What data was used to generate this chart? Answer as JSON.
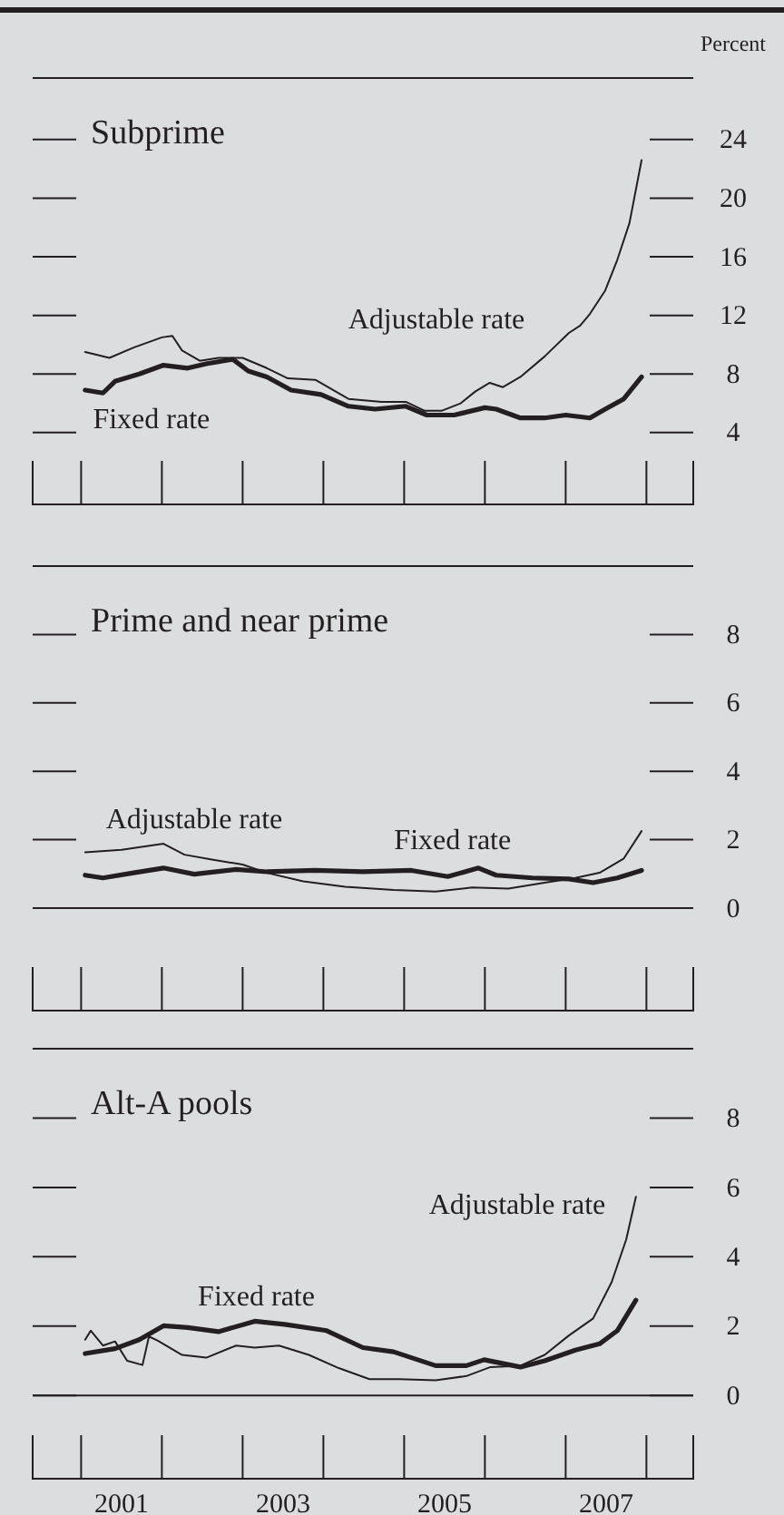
{
  "chart_data": [
    {
      "type": "line",
      "title": "Subprime",
      "ylabel": "Percent",
      "xlim": [
        2000.4,
        2008.58
      ],
      "ylim": [
        -0.9,
        28.2
      ],
      "yticks": [
        4,
        8,
        12,
        16,
        20,
        24
      ],
      "tick_labels": "y",
      "series": [
        {
          "name": "Adjustable rate",
          "color": "#231f20",
          "x": [
            2001.05,
            2001.35,
            2001.65,
            2002.0,
            2002.13,
            2002.25,
            2002.47,
            2002.7,
            2003.0,
            2003.3,
            2003.56,
            2003.9,
            2004.31,
            2004.72,
            2005.02,
            2005.25,
            2005.47,
            2005.7,
            2005.88,
            2006.06,
            2006.22,
            2006.44,
            2006.74,
            2007.04,
            2007.18,
            2007.3,
            2007.49,
            2007.64,
            2007.79,
            2007.94
          ],
          "values": [
            9.5,
            9.1,
            9.8,
            10.5,
            10.6,
            9.6,
            8.9,
            9.1,
            9.1,
            8.4,
            7.7,
            7.6,
            6.3,
            6.1,
            6.1,
            5.5,
            5.5,
            6.0,
            6.8,
            7.4,
            7.1,
            7.8,
            9.2,
            10.8,
            11.3,
            12.1,
            13.7,
            15.8,
            18.3,
            22.6
          ]
        },
        {
          "name": "Fixed rate",
          "color": "#231f20",
          "x": [
            2001.05,
            2001.27,
            2001.42,
            2001.72,
            2002.02,
            2002.32,
            2002.55,
            2002.88,
            2003.07,
            2003.3,
            2003.6,
            2003.97,
            2004.31,
            2004.64,
            2005.02,
            2005.28,
            2005.62,
            2006.0,
            2006.14,
            2006.44,
            2006.74,
            2007.0,
            2007.3,
            2007.49,
            2007.72,
            2007.94
          ],
          "values": [
            6.9,
            6.7,
            7.5,
            8.0,
            8.6,
            8.4,
            8.7,
            9.0,
            8.2,
            7.8,
            6.9,
            6.6,
            5.8,
            5.6,
            5.8,
            5.2,
            5.2,
            5.7,
            5.6,
            5.0,
            5.0,
            5.2,
            5.0,
            5.6,
            6.3,
            7.8
          ]
        }
      ]
    },
    {
      "type": "line",
      "title": "Prime and near prime",
      "xlim": [
        2000.4,
        2008.58
      ],
      "ylim": [
        -3,
        10
      ],
      "yticks": [
        0,
        2,
        4,
        6,
        8
      ],
      "tick_labels": "y",
      "ref_lines": [
        {
          "axis": "y",
          "value": 0,
          "color": "#231f20"
        }
      ],
      "series": [
        {
          "name": "Adjustable rate",
          "color": "#231f20",
          "x": [
            2001.05,
            2001.5,
            2002.02,
            2002.28,
            2002.62,
            2003.0,
            2003.3,
            2003.75,
            2004.27,
            2004.87,
            2005.39,
            2005.84,
            2006.29,
            2006.74,
            2007.12,
            2007.42,
            2007.72,
            2007.94
          ],
          "values": [
            1.63,
            1.7,
            1.88,
            1.56,
            1.42,
            1.27,
            1.03,
            0.78,
            0.62,
            0.53,
            0.48,
            0.6,
            0.57,
            0.74,
            0.88,
            1.03,
            1.45,
            2.25
          ]
        },
        {
          "name": "Fixed rate",
          "color": "#231f20",
          "x": [
            2001.05,
            2001.27,
            2001.65,
            2002.02,
            2002.4,
            2002.92,
            2003.3,
            2003.9,
            2004.49,
            2005.09,
            2005.54,
            2005.92,
            2006.14,
            2006.59,
            2007.04,
            2007.34,
            2007.64,
            2007.94
          ],
          "values": [
            0.96,
            0.88,
            1.03,
            1.17,
            0.99,
            1.13,
            1.06,
            1.1,
            1.06,
            1.1,
            0.92,
            1.17,
            0.96,
            0.88,
            0.85,
            0.74,
            0.88,
            1.1
          ]
        }
      ]
    },
    {
      "type": "line",
      "title": "Alt-A pools",
      "xlim": [
        2000.4,
        2008.58
      ],
      "ylim": [
        -2.4,
        10
      ],
      "yticks": [
        0,
        2,
        4,
        6,
        8
      ],
      "xticks": [
        {
          "value": 2001.5,
          "label": "2001"
        },
        {
          "value": 2003.5,
          "label": "2003"
        },
        {
          "value": 2005.5,
          "label": "2005"
        },
        {
          "value": 2007.5,
          "label": "2007"
        }
      ],
      "ref_lines": [
        {
          "axis": "y",
          "value": 0,
          "color": "#231f20"
        }
      ],
      "series": [
        {
          "name": "Adjustable rate",
          "color": "#231f20",
          "x": [
            2001.05,
            2001.12,
            2001.27,
            2001.42,
            2001.57,
            2001.76,
            2001.84,
            2001.95,
            2002.25,
            2002.55,
            2002.92,
            2003.15,
            2003.45,
            2003.82,
            2004.19,
            2004.57,
            2004.94,
            2005.39,
            2005.77,
            2006.07,
            2006.44,
            2006.74,
            2007.04,
            2007.34,
            2007.57,
            2007.75,
            2007.87
          ],
          "values": [
            1.61,
            1.87,
            1.44,
            1.56,
            1.0,
            0.88,
            1.7,
            1.58,
            1.17,
            1.09,
            1.44,
            1.38,
            1.44,
            1.17,
            0.79,
            0.47,
            0.47,
            0.44,
            0.56,
            0.82,
            0.86,
            1.17,
            1.73,
            2.22,
            3.27,
            4.5,
            5.73
          ]
        },
        {
          "name": "Fixed rate",
          "color": "#231f20",
          "x": [
            2001.05,
            2001.42,
            2001.72,
            2002.02,
            2002.32,
            2002.7,
            2003.15,
            2003.52,
            2004.04,
            2004.49,
            2004.87,
            2005.39,
            2005.77,
            2005.99,
            2006.44,
            2006.74,
            2007.12,
            2007.42,
            2007.64,
            2007.87
          ],
          "values": [
            1.21,
            1.35,
            1.61,
            2.01,
            1.96,
            1.84,
            2.14,
            2.05,
            1.87,
            1.38,
            1.26,
            0.86,
            0.86,
            1.03,
            0.82,
            1.0,
            1.31,
            1.49,
            1.87,
            2.75
          ]
        }
      ]
    }
  ]
}
